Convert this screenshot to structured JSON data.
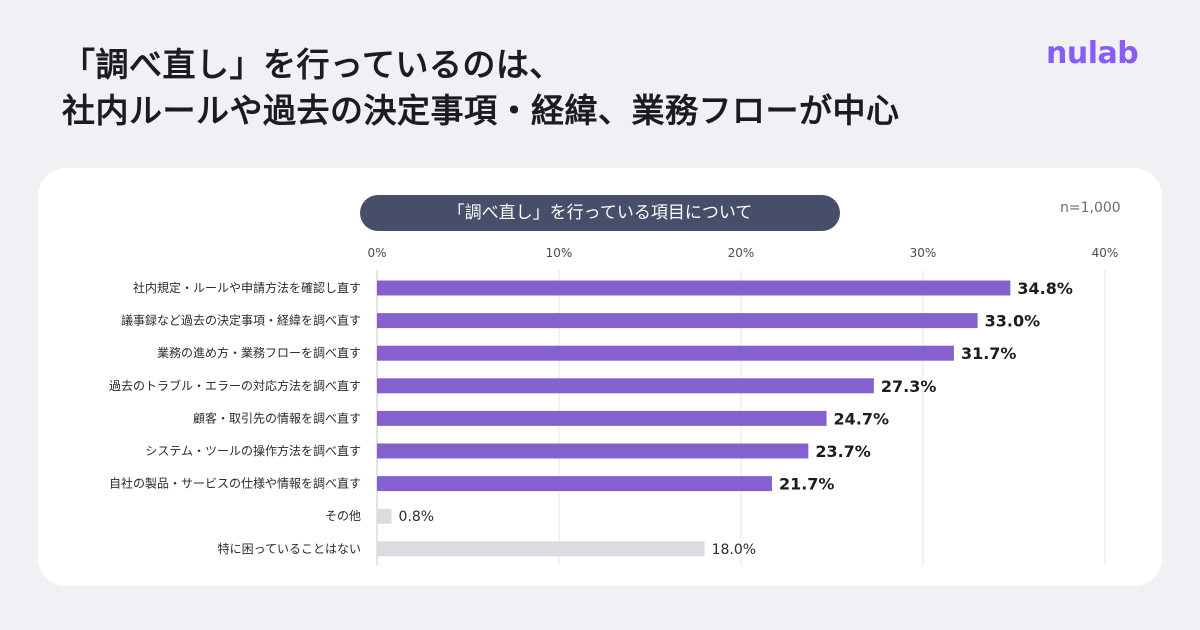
{
  "header": {
    "title_line1": "「調べ直し」を行っているのは、",
    "title_line2": "社内ルールや過去の決定事項・経緯、業務フローが中心",
    "logo_text": "nulab"
  },
  "chart_data": {
    "type": "bar",
    "orientation": "horizontal",
    "title": "「調べ直し」を行っている項目について",
    "sample_note": "n=1,000",
    "xlim": [
      0,
      40
    ],
    "x_ticks": [
      "0%",
      "10%",
      "20%",
      "30%",
      "40%"
    ],
    "x_tick_values": [
      0,
      10,
      20,
      30,
      40
    ],
    "grid": true,
    "categories": [
      "社内規定・ルールや申請方法を確認し直す",
      "議事録など過去の決定事項・経緯を調べ直す",
      "業務の進め方・業務フローを調べ直す",
      "過去のトラブル・エラーの対応方法を調べ直す",
      "顧客・取引先の情報を調べ直す",
      "システム・ツールの操作方法を調べ直す",
      "自社の製品・サービスの仕様や情報を調べ直す",
      "その他",
      "特に困っていることはない"
    ],
    "values": [
      34.8,
      33.0,
      31.7,
      27.3,
      24.7,
      23.7,
      21.7,
      0.8,
      18.0
    ],
    "value_labels": [
      "34.8%",
      "33.0%",
      "31.7%",
      "27.3%",
      "24.7%",
      "23.7%",
      "21.7%",
      "0.8%",
      "18.0%"
    ],
    "highlight": [
      true,
      true,
      true,
      true,
      true,
      true,
      true,
      false,
      false
    ],
    "colors": {
      "main": "#8561d0",
      "muted": "#dcdce0",
      "grid": "#e4e4ea"
    }
  }
}
